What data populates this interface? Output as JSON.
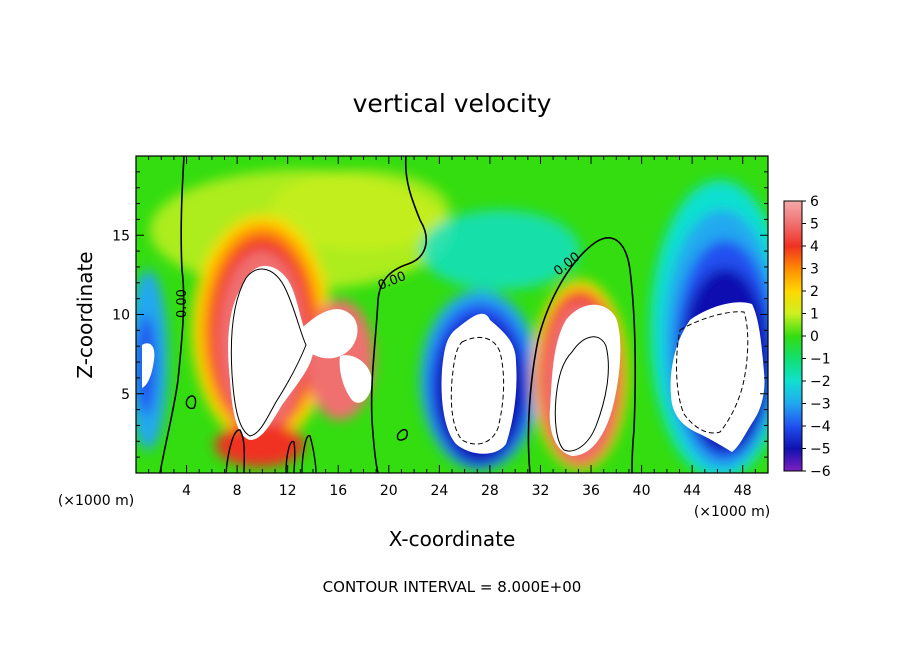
{
  "chart_data": {
    "type": "heatmap",
    "title": "vertical velocity",
    "xlabel": "X-coordinate",
    "ylabel": "Z-coordinate",
    "x_units": "(×1000 m)",
    "y_units": "(×1000 m)",
    "xlim": [
      0,
      50
    ],
    "ylim": [
      0,
      20
    ],
    "x_ticks": [
      4,
      8,
      12,
      16,
      20,
      24,
      28,
      32,
      36,
      40,
      44,
      48
    ],
    "y_ticks": [
      5,
      10,
      15
    ],
    "colorbar": {
      "levels": [
        6,
        5,
        4,
        3,
        2,
        1,
        0,
        -1,
        -2,
        -3,
        -4,
        -5,
        -6
      ],
      "colors": {
        "pos6": "#f5a8a8",
        "pos5": "#f07070",
        "pos4": "#f03020",
        "pos3": "#ff8c00",
        "pos2": "#ffd800",
        "pos1": "#ccf020",
        "zero": "#33dd10",
        "neg1": "#10e070",
        "neg2": "#10e0d0",
        "neg3": "#20a8f0",
        "neg4": "#2050f0",
        "neg5": "#1010b0",
        "neg6": "#8020c0"
      }
    },
    "contour_labels": [
      "0.00",
      "0.00",
      "0.00"
    ],
    "contour_interval_text": "CONTOUR INTERVAL = 8.000E+00",
    "features": [
      {
        "kind": "updraft",
        "x": 10,
        "z": 7.5,
        "w_exceeds": 6
      },
      {
        "kind": "downdraft",
        "x": 27.5,
        "z": 5.5,
        "w_below": -6
      },
      {
        "kind": "updraft",
        "x": 34.5,
        "z": 5,
        "w_exceeds": 6
      },
      {
        "kind": "downdraft",
        "x": 46,
        "z": 6.5,
        "w_below": -6
      }
    ]
  }
}
